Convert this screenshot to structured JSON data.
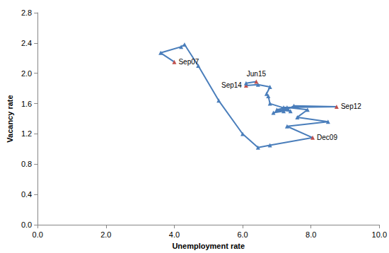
{
  "chart_data": {
    "type": "line",
    "x_label": "Unemployment rate",
    "y_label": "Vacancy rate",
    "x": [
      4.0,
      3.6,
      4.2,
      4.3,
      4.7,
      5.3,
      6.0,
      6.45,
      6.8,
      8.05,
      7.3,
      8.5,
      7.6,
      7.9,
      7.3,
      7.0,
      7.4,
      7.2,
      8.75,
      7.5,
      7.2,
      6.9,
      7.3,
      6.8,
      6.75,
      6.7,
      6.8,
      6.45,
      6.1,
      6.1,
      6.4
    ],
    "y": [
      2.15,
      2.27,
      2.35,
      2.38,
      2.1,
      1.64,
      1.2,
      1.02,
      1.05,
      1.15,
      1.3,
      1.36,
      1.42,
      1.52,
      1.55,
      1.52,
      1.5,
      1.55,
      1.56,
      1.57,
      1.5,
      1.48,
      1.53,
      1.6,
      1.7,
      1.73,
      1.82,
      1.85,
      1.84,
      1.87,
      1.89
    ],
    "point_labels": [
      "Sep07",
      null,
      null,
      null,
      null,
      null,
      null,
      null,
      null,
      "Dec09",
      null,
      null,
      null,
      null,
      null,
      null,
      null,
      null,
      "Sep12",
      null,
      null,
      null,
      null,
      null,
      null,
      null,
      null,
      null,
      "Sep14",
      null,
      "Jun15"
    ],
    "color": "#4a7ebb",
    "colors": [
      "#c0504d",
      "#4a7ebb",
      "#4a7ebb",
      "#4a7ebb",
      "#4a7ebb",
      "#4a7ebb",
      "#4a7ebb",
      "#4a7ebb",
      "#4a7ebb",
      "#c0504d",
      "#4a7ebb",
      "#4a7ebb",
      "#4a7ebb",
      "#4a7ebb",
      "#4a7ebb",
      "#4a7ebb",
      "#4a7ebb",
      "#4a7ebb",
      "#c0504d",
      "#4a7ebb",
      "#4a7ebb",
      "#4a7ebb",
      "#4a7ebb",
      "#4a7ebb",
      "#4a7ebb",
      "#4a7ebb",
      "#4a7ebb",
      "#4a7ebb",
      "#c0504d",
      "#4a7ebb",
      "#c0504d"
    ],
    "marker": "triangle",
    "xlim": [
      0,
      10
    ],
    "xticks": [
      {
        "value": 0,
        "label": "0.0"
      },
      {
        "value": 2,
        "label": "2.0"
      },
      {
        "value": 4,
        "label": "4.0"
      },
      {
        "value": 6,
        "label": "6.0"
      },
      {
        "value": 8,
        "label": "8.0"
      },
      {
        "value": 10,
        "label": "10.0"
      }
    ],
    "ylim": [
      0,
      2.8
    ],
    "yticks": [
      {
        "value": 0,
        "label": "0.0"
      },
      0.4,
      0.8,
      1.2,
      1.6,
      {
        "value": 2,
        "label": "2.0"
      },
      2.4,
      2.8
    ],
    "grid": false
  }
}
